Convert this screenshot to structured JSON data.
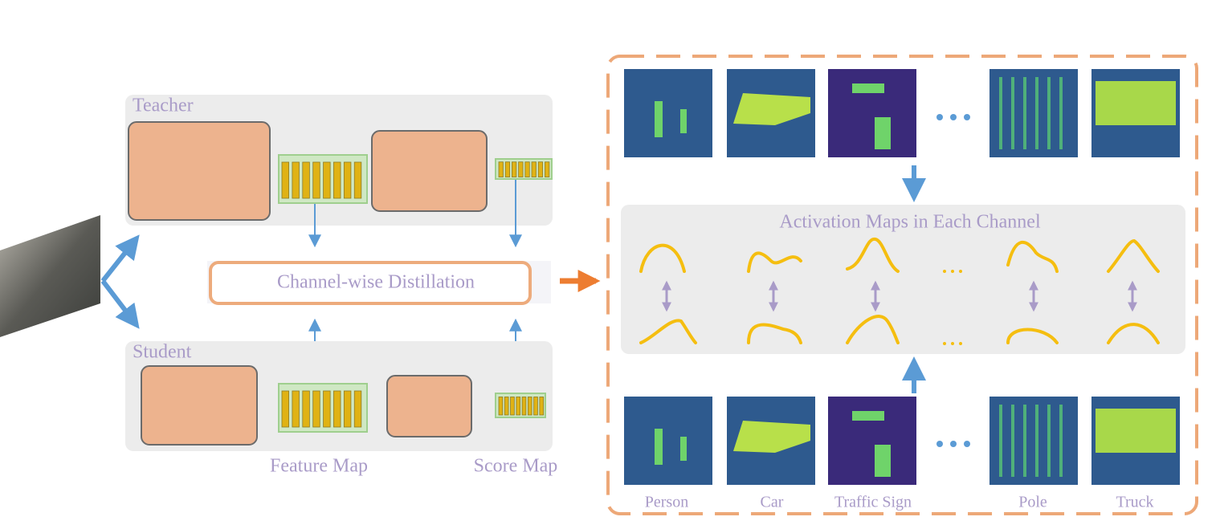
{
  "teacher": {
    "label": "Teacher"
  },
  "student": {
    "label": "Student"
  },
  "distillation": {
    "label": "Channel-wise Distillation"
  },
  "captions": {
    "feature_map": "Feature Map",
    "score_map": "Score Map"
  },
  "activation_panel": {
    "title": "Activation Maps in Each Channel",
    "classes": [
      "Person",
      "Car",
      "Traffic Sign",
      "Pole",
      "Truck"
    ]
  }
}
